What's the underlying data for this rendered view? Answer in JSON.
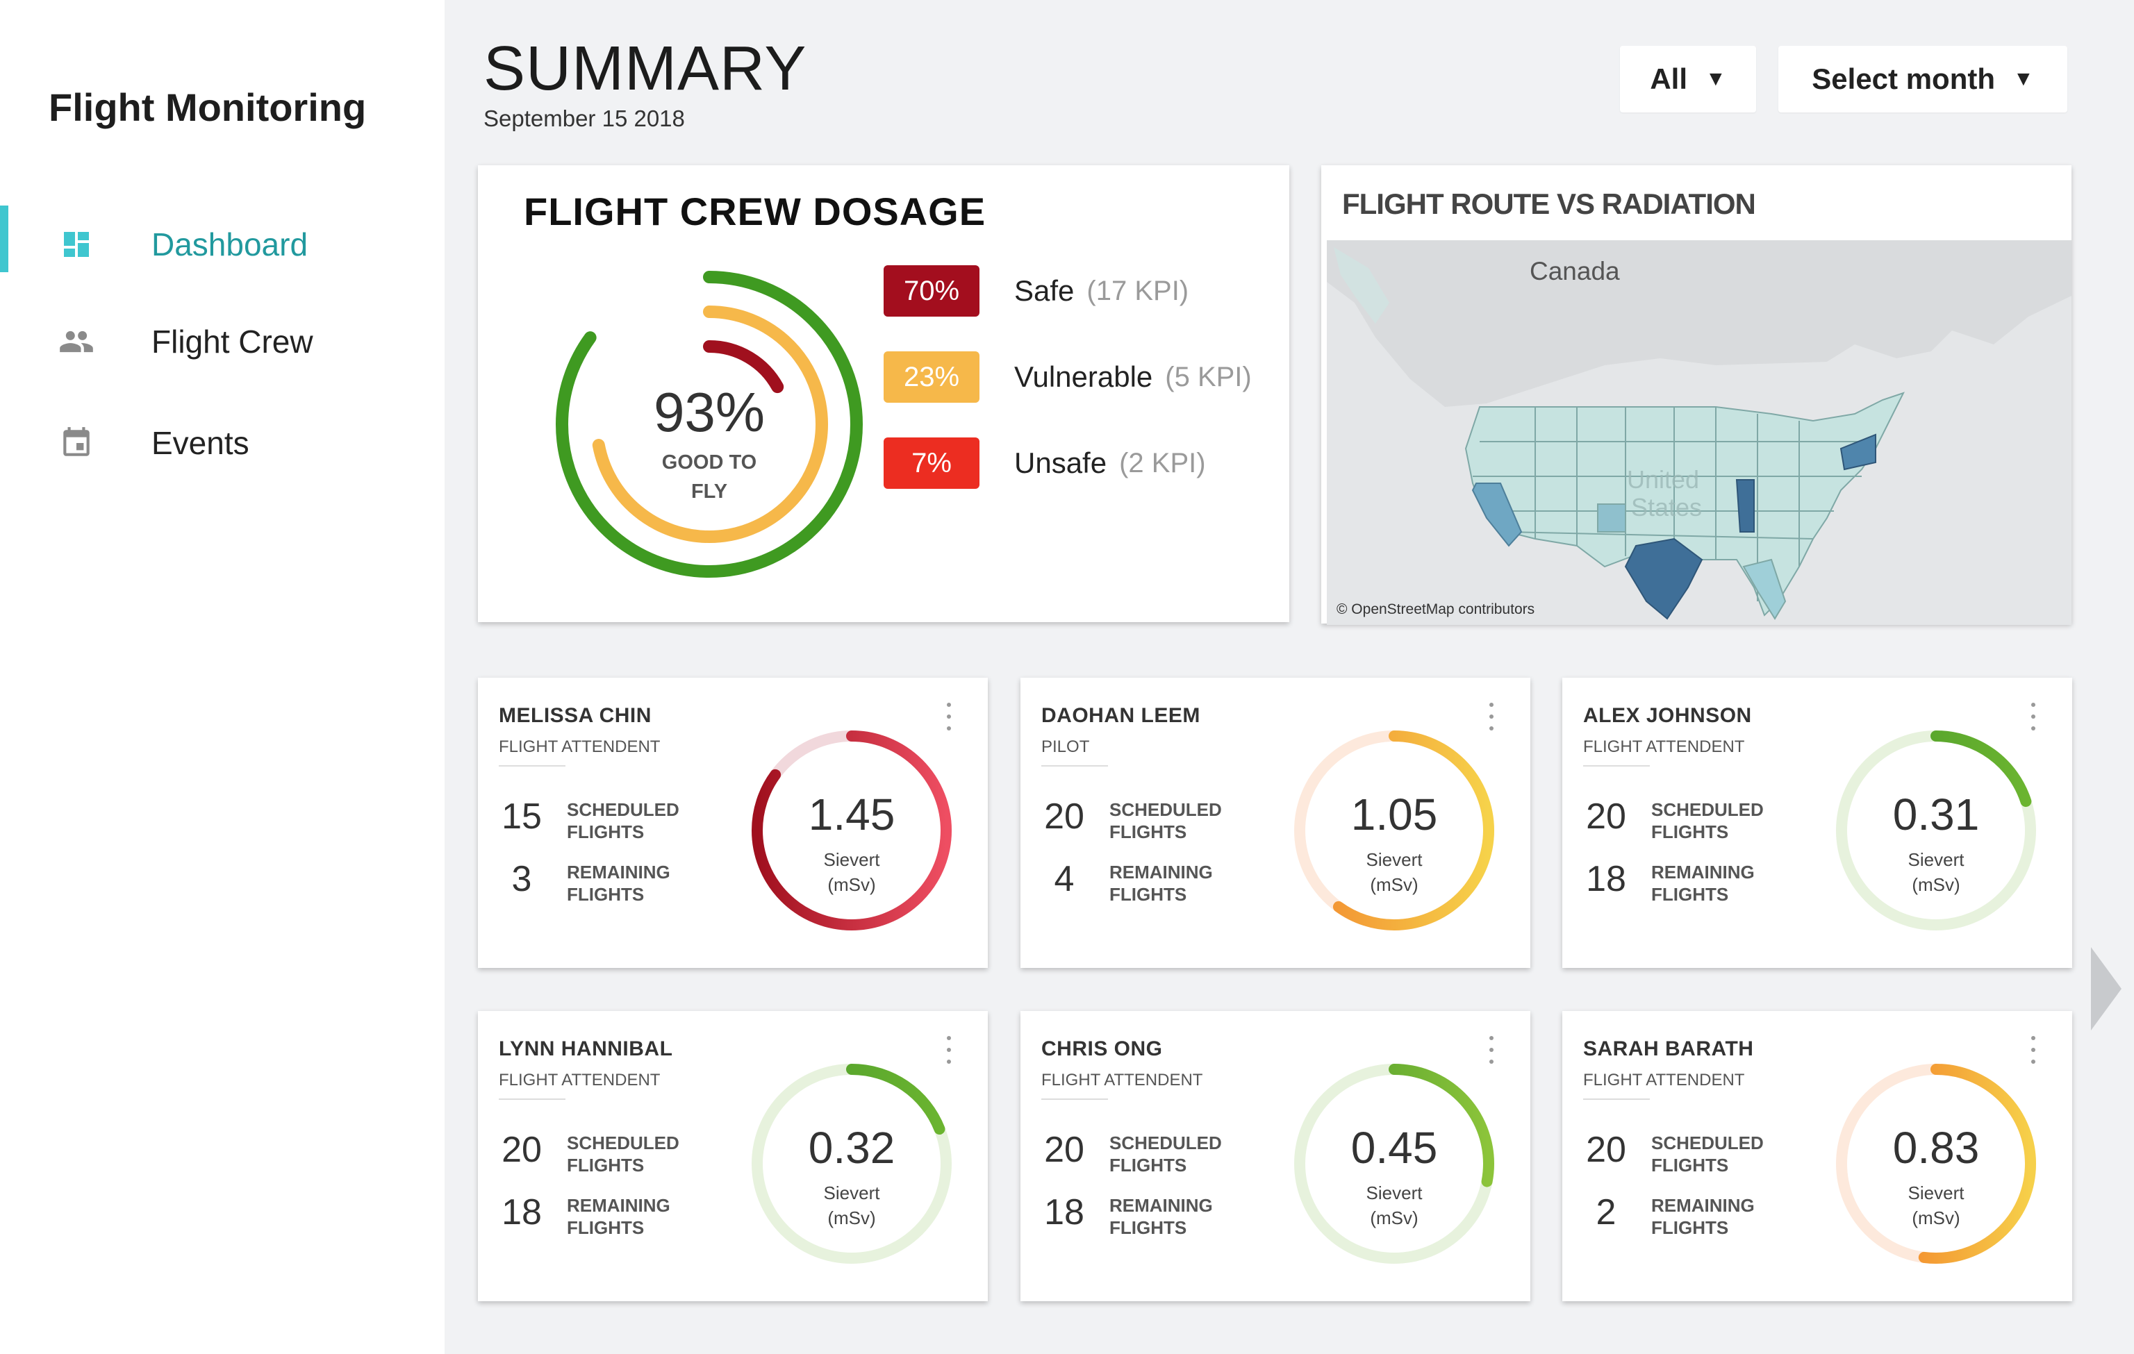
{
  "app": {
    "title": "Flight Monitoring"
  },
  "sidebar": {
    "items": [
      {
        "label": "Dashboard",
        "icon": "dashboard-icon",
        "active": true
      },
      {
        "label": "Flight Crew",
        "icon": "people-icon",
        "active": false
      },
      {
        "label": "Events",
        "icon": "calendar-icon",
        "active": false
      }
    ]
  },
  "header": {
    "title": "SUMMARY",
    "date": "September 15 2018",
    "filter_value": "All",
    "month_placeholder": "Select month"
  },
  "dosage": {
    "title": "FLIGHT CREW DOSAGE",
    "center_value": "93%",
    "center_label_line1": "GOOD TO",
    "center_label_line2": "FLY",
    "rings": [
      {
        "name": "Safe",
        "fraction": 0.85,
        "color": "#3f9a21"
      },
      {
        "name": "Vulnerable",
        "fraction": 0.72,
        "color": "#f6b84a"
      },
      {
        "name": "Unsafe",
        "fraction": 0.17,
        "color": "#a0101e"
      }
    ],
    "kpis": [
      {
        "percent": "70%",
        "label": "Safe",
        "count": "(17 KPI)",
        "color": "#a30e1e"
      },
      {
        "percent": "23%",
        "label": "Vulnerable",
        "count": "(5 KPI)",
        "color": "#f6b84a"
      },
      {
        "percent": "7%",
        "label": "Unsafe",
        "count": "(2 KPI)",
        "color": "#ec2d21"
      }
    ]
  },
  "map": {
    "title": "FLIGHT ROUTE VS RADIATION",
    "country_label": "Canada",
    "us_label_line1": "United",
    "us_label_line2": "States",
    "credit": "© OpenStreetMap contributors"
  },
  "crew": [
    {
      "name": "MELISSA CHIN",
      "role": "FLIGHT ATTENDENT",
      "scheduled": "15",
      "remaining": "3",
      "value": "1.45",
      "level": 0.85,
      "color_start": "#a0101e",
      "color_end": "#ee4e62",
      "track": "#f1d8dc"
    },
    {
      "name": "DAOHAN LEEM",
      "role": "PILOT",
      "scheduled": "20",
      "remaining": "4",
      "value": "1.05",
      "level": 0.6,
      "color_start": "#f28a30",
      "color_end": "#f6d24a",
      "track": "#fde9dc"
    },
    {
      "name": "ALEX JOHNSON",
      "role": "FLIGHT ATTENDENT",
      "scheduled": "20",
      "remaining": "18",
      "value": "0.31",
      "level": 0.2,
      "color_start": "#4a9a2a",
      "color_end": "#6cb530",
      "track": "#e7f2dd"
    },
    {
      "name": "LYNN HANNIBAL",
      "role": "FLIGHT ATTENDENT",
      "scheduled": "20",
      "remaining": "18",
      "value": "0.32",
      "level": 0.19,
      "color_start": "#4a9a2a",
      "color_end": "#6cb530",
      "track": "#e7f2dd"
    },
    {
      "name": "CHRIS ONG",
      "role": "FLIGHT ATTENDENT",
      "scheduled": "20",
      "remaining": "18",
      "value": "0.45",
      "level": 0.28,
      "color_start": "#4a9a2a",
      "color_end": "#8cc43a",
      "track": "#e7f2dd"
    },
    {
      "name": "SARAH BARATH",
      "role": "FLIGHT ATTENDENT",
      "scheduled": "20",
      "remaining": "2",
      "value": "0.83",
      "level": 0.52,
      "color_start": "#f26f22",
      "color_end": "#f6d04a",
      "track": "#fde9dc"
    }
  ],
  "labels": {
    "scheduled_line1": "SCHEDULED",
    "remaining_line1": "REMAINING",
    "flights": "FLIGHTS",
    "unit_line1": "Sievert",
    "unit_line2": "(mSv)"
  }
}
